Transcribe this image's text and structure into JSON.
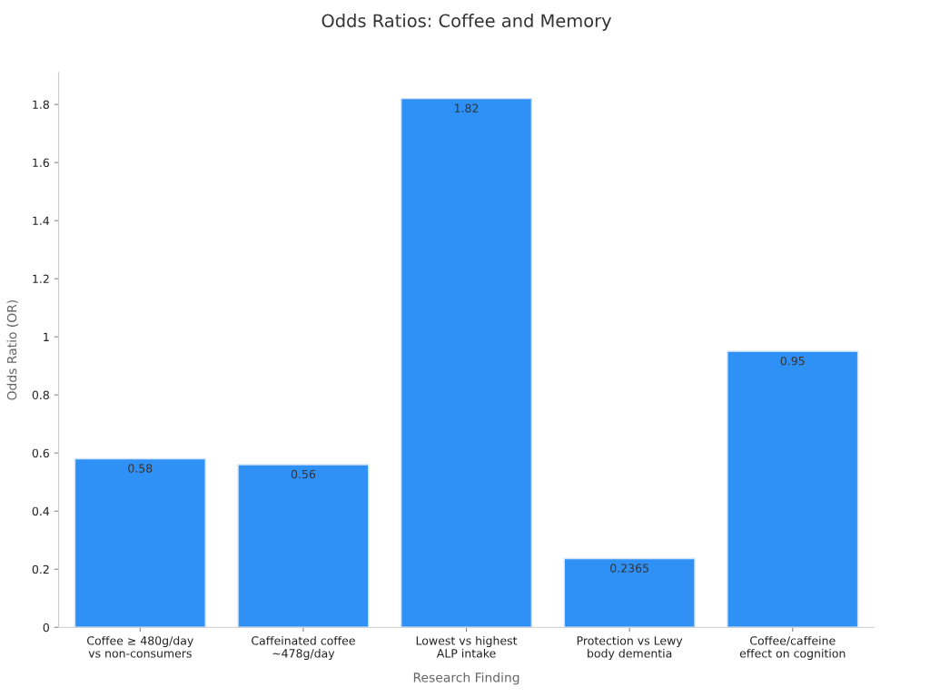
{
  "chart_data": {
    "type": "bar",
    "title": "Odds Ratios: Coffee and Memory",
    "xlabel": "Research Finding",
    "ylabel": "Odds Ratio (OR)",
    "categories": [
      "Coffee ≥ 480g/day\nvs non-consumers",
      "Caffeinated coffee\n~478g/day",
      "Lowest vs highest\nALP intake",
      "Protection vs Lewy\nbody dementia",
      "Coffee/caffeine\neffect on cognition"
    ],
    "values": [
      0.58,
      0.56,
      1.82,
      0.2365,
      0.95
    ],
    "color": "#2f91f6",
    "ylim": [
      0,
      1.91
    ],
    "yticks": [
      0,
      0.2,
      0.4,
      0.6,
      0.8,
      1,
      1.2,
      1.4,
      1.6,
      1.8
    ],
    "data_labels": true,
    "grid": false,
    "legend": false
  }
}
